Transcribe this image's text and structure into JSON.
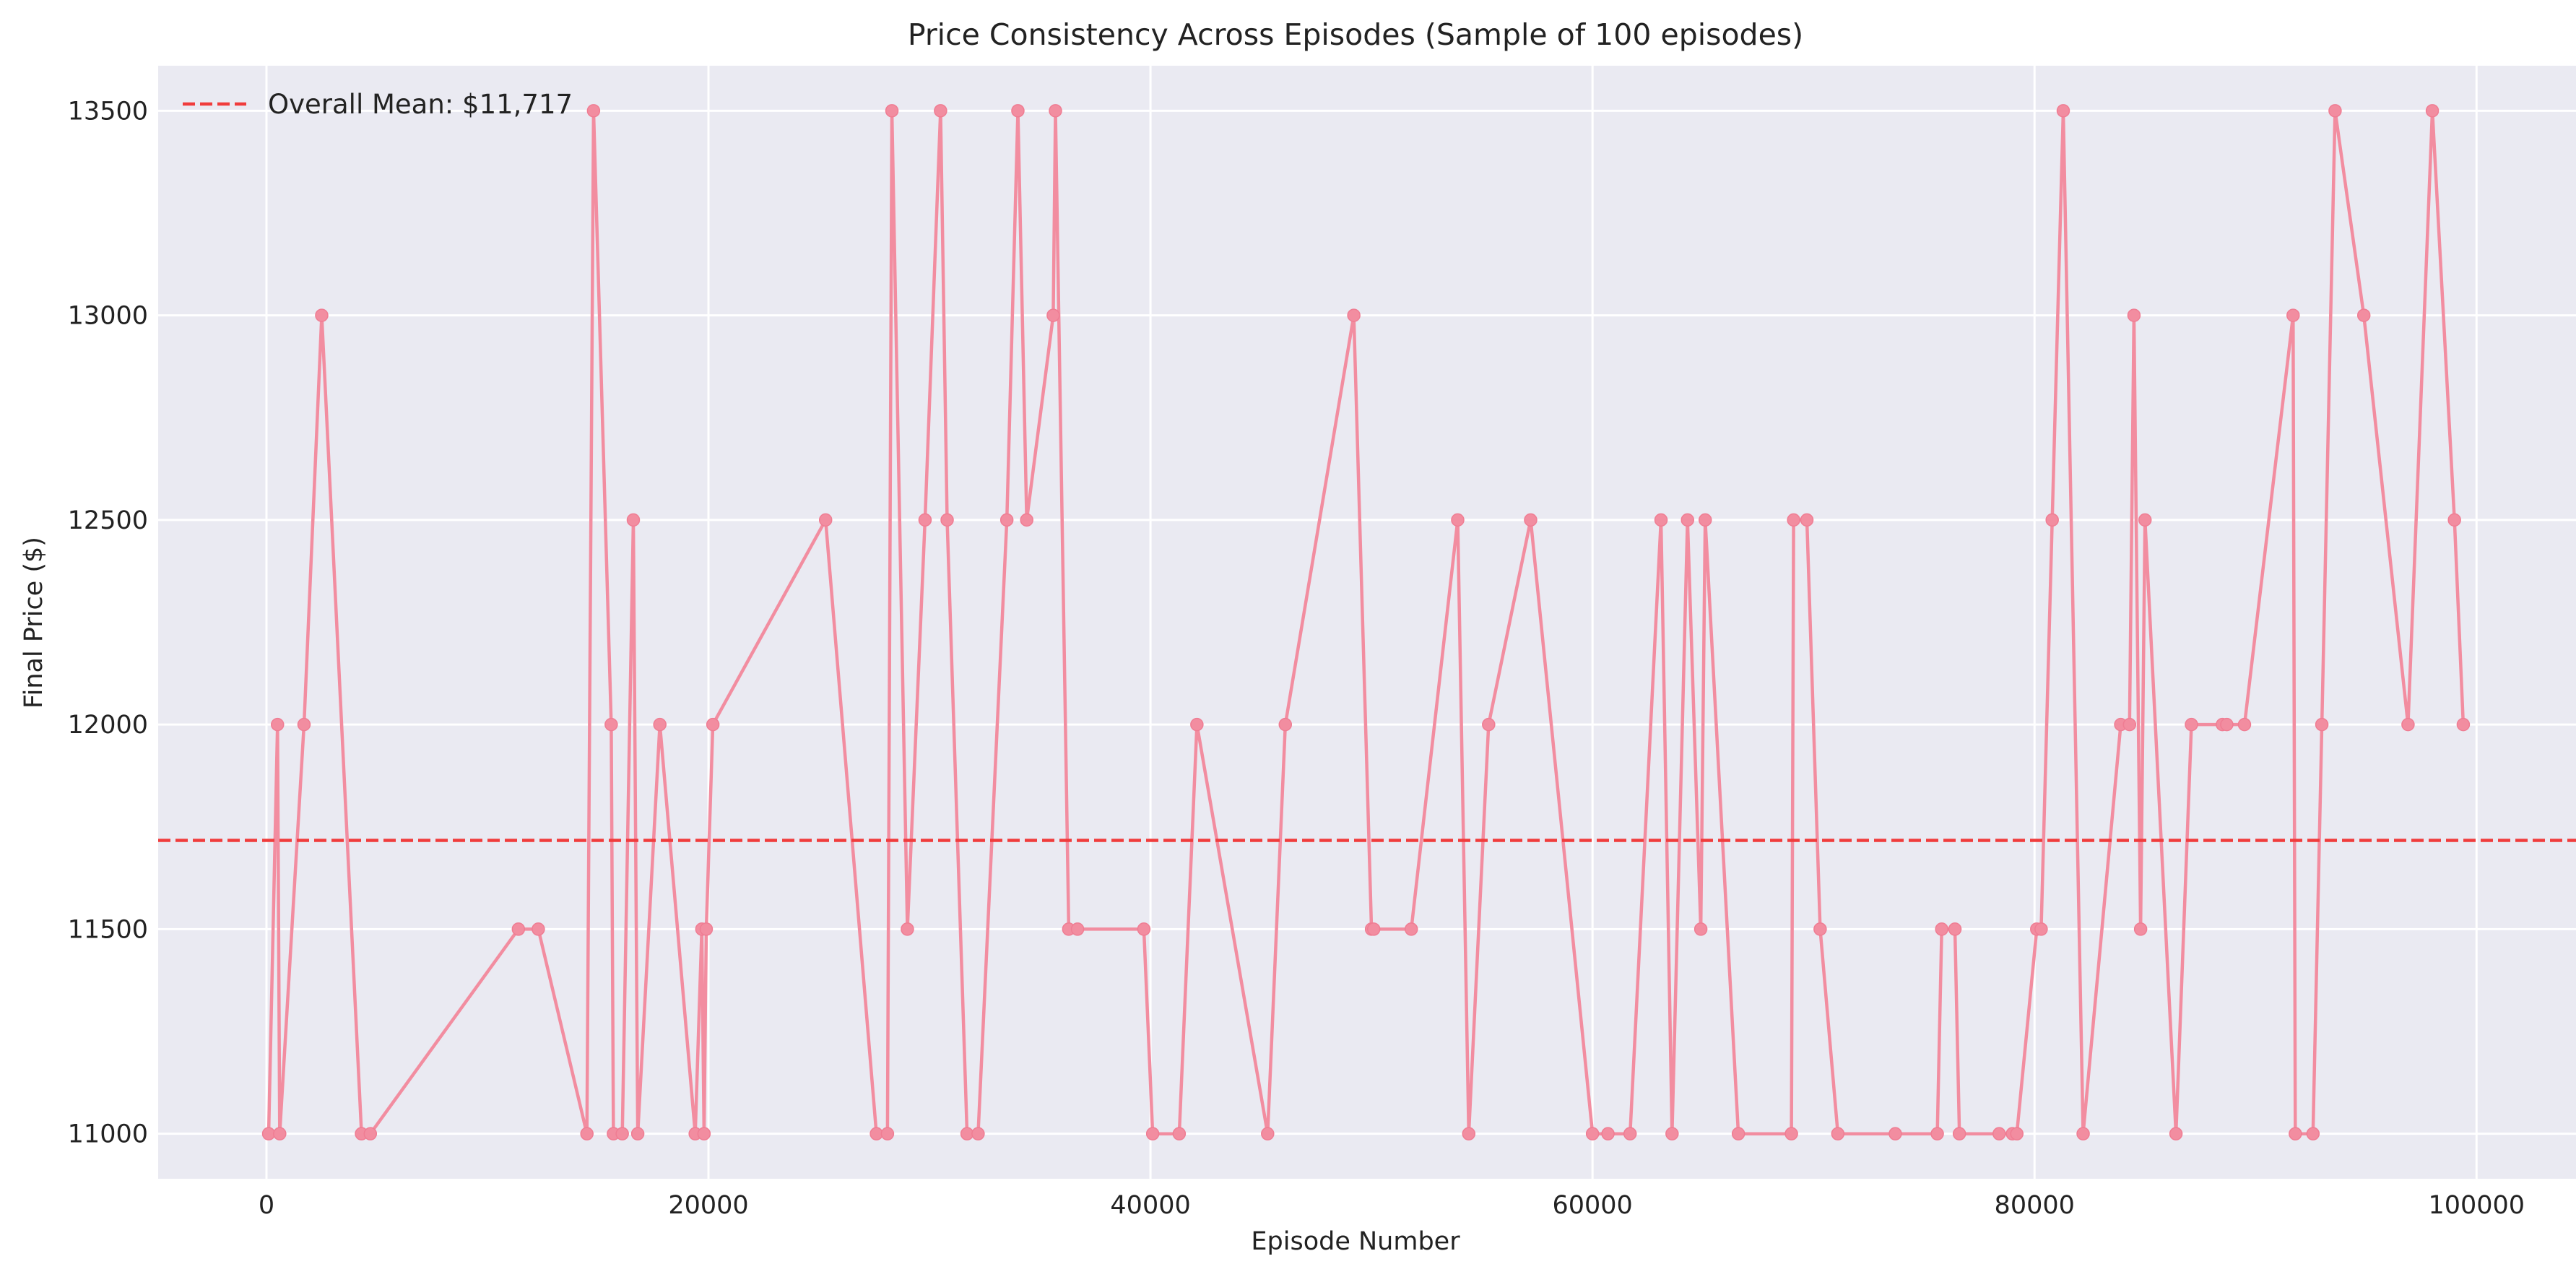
{
  "chart_data": {
    "type": "line",
    "title": "Price Consistency Across Episodes (Sample of 100 episodes)",
    "xlabel": "Episode Number",
    "ylabel": "Final Price ($)",
    "xlim": [
      -4900,
      104500
    ],
    "ylim": [
      10890,
      13610
    ],
    "xticks": [
      0,
      20000,
      40000,
      60000,
      80000,
      100000
    ],
    "yticks": [
      11000,
      11500,
      12000,
      12500,
      13000,
      13500
    ],
    "grid": true,
    "legend": {
      "placement": "top-left",
      "entries": [
        "Overall Mean: $11,717"
      ]
    },
    "series": [
      {
        "x": [
          100,
          500,
          600,
          1700,
          2500,
          4300,
          4700,
          11400,
          12300,
          14500,
          14800,
          15600,
          15700,
          16100,
          16600,
          16800,
          17800,
          19400,
          19700,
          19800,
          19900,
          20200,
          25300,
          27600,
          28100,
          28300,
          29000,
          29800,
          30500,
          30800,
          31700,
          32200,
          33500,
          34000,
          34400,
          35600,
          35700,
          36300,
          36700,
          39700,
          40100,
          41300,
          42100,
          45300,
          46100,
          49200,
          50000,
          50100,
          51800,
          53900,
          54400,
          55300,
          57200,
          60000,
          60700,
          61700,
          63100,
          63600,
          64300,
          64900,
          65100,
          66600,
          69000,
          69100,
          69700,
          70300,
          71100,
          73700,
          75600,
          75800,
          76400,
          76600,
          78400,
          79000,
          79200,
          80100,
          80300,
          80800,
          81300,
          82200,
          83900,
          84300,
          84500,
          84800,
          85000,
          86400,
          87100,
          88500,
          88700,
          89500,
          91700,
          91800,
          92600,
          93000,
          93600,
          94900,
          96900,
          98000,
          99000,
          99400
        ],
        "values": [
          11000,
          12000,
          11000,
          12000,
          13000,
          11000,
          11000,
          11500,
          11500,
          11000,
          13500,
          12000,
          11000,
          11000,
          12500,
          11000,
          12000,
          11000,
          11500,
          11000,
          11500,
          12000,
          12500,
          11000,
          11000,
          13500,
          11500,
          12500,
          13500,
          12500,
          11000,
          11000,
          12500,
          13500,
          12500,
          13000,
          13500,
          11500,
          11500,
          11500,
          11000,
          11000,
          12000,
          11000,
          12000,
          13000,
          11500,
          11500,
          11500,
          12500,
          11000,
          12000,
          12500,
          11000,
          11000,
          11000,
          12500,
          11000,
          12500,
          11500,
          12500,
          11000,
          11000,
          12500,
          12500,
          11500,
          11000,
          11000,
          11000,
          11500,
          11500,
          11000,
          11000,
          11000,
          11000,
          11500,
          11500,
          12500,
          13500,
          11000,
          12000,
          12000,
          13000,
          11500,
          12500,
          11000,
          12000,
          12000,
          12000,
          12000,
          13000,
          11000,
          11000,
          12000,
          13500,
          13000,
          12000,
          13500,
          12500,
          12000
        ],
        "color": "#f28da0"
      }
    ],
    "mean_line": {
      "value": 11717,
      "color": "#f03c3c",
      "style": "dashed"
    },
    "background_color": "#eaeaf2",
    "grid_color": "#ffffff"
  }
}
